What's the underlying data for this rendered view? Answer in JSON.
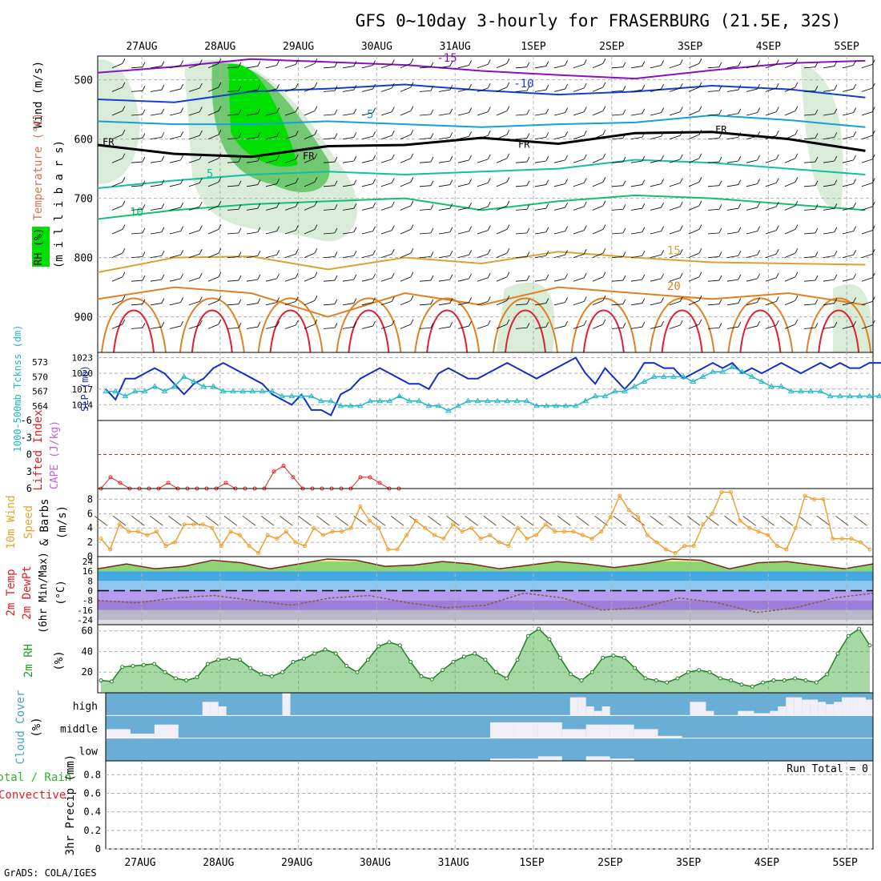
{
  "title": "GFS 0~10day 3-hourly for FRASERBURG (21.5E, 32S)",
  "footer": "GrADS: COLA/IGES",
  "colors": {
    "background": "#ffffff",
    "frame": "#000000",
    "grid": "#b0b0b0",
    "rh_dark": "#00e000",
    "rh_mid": "#70c870",
    "rh_light": "#d8ecd8",
    "temp_purple": "#8a10c0",
    "temp_blue": "#1040d0",
    "temp_sky": "#10a0e0",
    "temp_teal": "#10c0a0",
    "temp_green": "#10c070",
    "temp_gold": "#e0a030",
    "temp_orange": "#e08020",
    "temp_red": "#e02030",
    "slp_line": "#1030c8",
    "thickness_line": "#20b8c8",
    "lifted_index": "#e02020",
    "wind_speed": "#f0a030",
    "wind_barb": "#6a4a2a",
    "rh2m_fill": "#3aa83a",
    "rh2m_line": "#208020",
    "cloud_fill": "#6aaed6",
    "cloud_bar": "#f0eef6",
    "precip_label": "#e02020"
  },
  "x_axis": {
    "date_labels": [
      "27AUG",
      "28AUG",
      "29AUG",
      "30AUG",
      "31AUG",
      "1SEP",
      "2SEP",
      "3SEP",
      "4SEP",
      "5SEP"
    ]
  },
  "panels": {
    "upper_air": {
      "ylabel_wind": "Wind (m/s)",
      "ylabel_temperature": "Temperature (°C)",
      "ylabel_rh": "RH (%)",
      "ylabel_pressure": "(m i l l i b a r s)",
      "pressure_ticks": [
        500,
        600,
        700,
        800,
        900
      ],
      "pressure_range": [
        460,
        960
      ]
    },
    "slp_thickness": {
      "ylabel_left": "1000-500mb Tcknss (dm)",
      "ylabel_right": "SLP (mb)",
      "left_ticks": [
        564,
        567,
        570,
        573
      ],
      "right_ticks": [
        1014,
        1017,
        1020,
        1023
      ]
    },
    "cape_li": {
      "ylabel_li": "Lifted Index",
      "ylabel_cape": "CAPE (J/kg)",
      "li_ticks": [
        -6,
        -3,
        0,
        3,
        6
      ]
    },
    "wind10m": {
      "ylabel_1": "10m Wind",
      "ylabel_2": "Speed",
      "ylabel_3": "& Barbs",
      "units": "(m/s)",
      "ticks": [
        0,
        2,
        4,
        6,
        8
      ]
    },
    "temp2m": {
      "ylabel_1": "2m Temp",
      "ylabel_2": "2m DewPt",
      "ylabel_3": "(6hr Min/Max)",
      "units": "(°C)",
      "ticks": [
        24,
        16,
        8,
        0,
        -8,
        -16,
        -24
      ]
    },
    "rh2m": {
      "ylabel": "2m RH",
      "units": "(%)",
      "ticks": [
        20,
        40,
        60
      ]
    },
    "cloud": {
      "ylabel_1": "Cloud Cover",
      "units": "(%)",
      "levels": [
        "high",
        "middle",
        "low"
      ]
    },
    "precip": {
      "ylabel_1": "Total / Rain",
      "ylabel_2": "Convective",
      "ylabel_3": "3hr Precip (mm)",
      "ticks": [
        0,
        0.2,
        0.4,
        0.6,
        0.8
      ],
      "run_total": "Run Total = 0"
    }
  },
  "chart_data": {
    "type": "line",
    "dates": [
      "27AUG",
      "28AUG",
      "29AUG",
      "30AUG",
      "31AUG",
      "1SEP",
      "2SEP",
      "3SEP",
      "4SEP",
      "5SEP"
    ],
    "steps_per_day": 8,
    "slp_mb": [
      1017,
      1015,
      1019,
      1019,
      1020,
      1021,
      1020,
      1018,
      1016,
      1018,
      1019,
      1021,
      1022,
      1021,
      1020,
      1019,
      1018,
      1016,
      1015,
      1014,
      1016,
      1013,
      1013,
      1012,
      1016,
      1017,
      1019,
      1020,
      1021,
      1020,
      1019,
      1018,
      1018,
      1017,
      1020,
      1021,
      1020,
      1019,
      1019,
      1020,
      1021,
      1022,
      1021,
      1020,
      1019,
      1020,
      1021,
      1022,
      1023,
      1020,
      1018,
      1021,
      1019,
      1017,
      1019,
      1022,
      1022,
      1021,
      1021,
      1019,
      1020,
      1021,
      1022,
      1021,
      1022,
      1020,
      1021,
      1020,
      1021,
      1022,
      1021,
      1020,
      1021,
      1022,
      1021,
      1022,
      1021,
      1021,
      1022,
      1022,
      1022
    ],
    "thickness_dm": [
      567,
      567,
      566,
      567,
      567,
      568,
      567,
      568,
      570,
      569,
      568,
      568,
      567,
      567,
      567,
      567,
      567,
      567,
      566,
      566,
      566,
      566,
      565,
      565,
      564,
      564,
      564,
      565,
      565,
      565,
      566,
      565,
      565,
      564,
      564,
      563,
      564,
      565,
      565,
      565,
      565,
      565,
      565,
      565,
      564,
      564,
      564,
      564,
      564,
      565,
      566,
      566,
      567,
      567,
      568,
      569,
      570,
      570,
      570,
      570,
      569,
      570,
      571,
      571,
      572,
      571,
      570,
      569,
      568,
      568,
      567,
      567,
      567,
      567,
      566,
      566,
      566,
      566,
      566,
      566,
      566
    ],
    "lifted_index": [
      6,
      4,
      5,
      6,
      6,
      6,
      6,
      5,
      6,
      6,
      6,
      6,
      6,
      5,
      6,
      6,
      6,
      6,
      3,
      2,
      4,
      6,
      6,
      6,
      6,
      6,
      6,
      4,
      4,
      5,
      6,
      6
    ],
    "wind10m_speed": [
      2.5,
      1.0,
      4.5,
      3.5,
      3.5,
      3.0,
      3.5,
      1.5,
      2.0,
      4.5,
      4.5,
      4.5,
      4.0,
      1.5,
      3.5,
      3.0,
      1.5,
      0.5,
      3.0,
      2.5,
      3.5,
      2.0,
      1.5,
      4.0,
      3.0,
      3.5,
      3.5,
      4.0,
      7.0,
      5.0,
      4.0,
      1.0,
      1.0,
      3.0,
      5.0,
      4.0,
      3.0,
      2.5,
      4.5,
      3.5,
      4.0,
      2.5,
      3.0,
      2.0,
      1.5,
      4.0,
      2.5,
      3.0,
      4.5,
      3.5,
      3.5,
      3.5,
      3.0,
      2.5,
      3.5,
      5.5,
      8.5,
      6.5,
      5.5,
      3.0,
      2.0,
      1.0,
      0.5,
      1.5,
      1.5,
      4.5,
      6.0,
      9.0,
      9.0,
      5.0,
      4.0,
      3.5,
      3.0,
      1.5,
      1.0,
      4.0,
      8.5,
      8.0,
      8.0,
      2.5,
      2.5,
      2.5,
      2.0,
      1.0
    ],
    "temp2m_max": [
      18,
      22,
      18,
      20,
      25,
      23,
      18,
      22,
      26,
      25,
      20,
      21,
      24,
      22,
      18,
      21,
      24,
      22,
      19,
      22,
      26,
      25,
      18,
      23,
      24,
      21,
      18,
      22
    ],
    "rh2m_pct": [
      12,
      11,
      25,
      26,
      27,
      28,
      20,
      14,
      12,
      15,
      28,
      32,
      33,
      32,
      24,
      18,
      16,
      20,
      30,
      33,
      38,
      42,
      38,
      26,
      20,
      32,
      45,
      49,
      46,
      30,
      16,
      13,
      22,
      30,
      35,
      38,
      32,
      20,
      14,
      32,
      55,
      62,
      52,
      34,
      18,
      12,
      20,
      34,
      36,
      34,
      24,
      14,
      12,
      10,
      14,
      20,
      22,
      20,
      14,
      12,
      8,
      6,
      10,
      12,
      12,
      14,
      12,
      10,
      18,
      38,
      55,
      62,
      46
    ],
    "cloud_high": [
      0,
      0,
      0,
      0,
      0,
      0,
      0,
      0,
      0,
      0,
      0,
      0,
      60,
      60,
      40,
      0,
      0,
      0,
      0,
      0,
      0,
      0,
      100,
      0,
      0,
      0,
      0,
      0,
      0,
      0,
      0,
      0,
      0,
      0,
      0,
      0,
      0,
      0,
      0,
      0,
      0,
      0,
      0,
      0,
      0,
      0,
      0,
      0,
      0,
      0,
      0,
      0,
      0,
      0,
      0,
      0,
      0,
      0,
      80,
      80,
      40,
      20,
      40,
      0,
      0,
      0,
      0,
      0,
      0,
      0,
      0,
      0,
      0,
      60,
      60,
      20,
      0,
      0,
      0,
      20,
      20,
      10,
      10,
      20,
      40,
      80,
      80,
      70,
      70,
      60,
      50,
      60,
      80,
      80,
      80,
      70
    ],
    "cloud_middle": [
      40,
      20,
      60,
      0,
      0,
      0,
      0,
      0,
      0,
      0,
      0,
      0,
      0,
      0,
      0,
      0,
      70,
      70,
      70,
      40,
      60,
      60,
      40,
      10,
      0,
      0,
      0,
      0,
      0,
      0,
      0
    ],
    "cloud_low": [
      0,
      0,
      0,
      0,
      0,
      0,
      0,
      0,
      0,
      0,
      0,
      0,
      0,
      0,
      0,
      0,
      10,
      10,
      20,
      0,
      20,
      10,
      0,
      0,
      0
    ],
    "precip_mm": 0
  }
}
